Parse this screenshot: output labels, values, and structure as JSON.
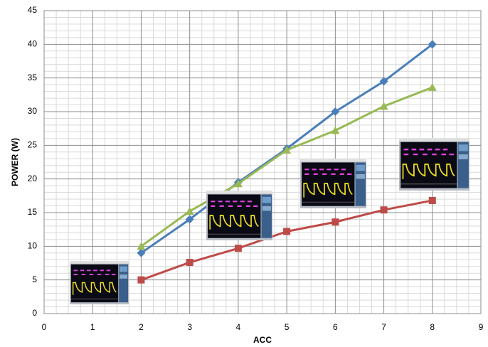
{
  "chart_data": {
    "type": "line",
    "x_label": "ACC",
    "y_label": "POWER (W)",
    "x": [
      2,
      3,
      4,
      5,
      6,
      7,
      8
    ],
    "series": [
      {
        "color": "#4a7ebb",
        "marker": "diamond",
        "values": [
          9,
          14,
          19.5,
          24.5,
          30,
          34.5,
          40
        ]
      },
      {
        "color": "#be4b48",
        "marker": "square",
        "values": [
          5,
          7.6,
          9.7,
          12.2,
          13.6,
          15.4,
          16.8
        ]
      },
      {
        "color": "#98b954",
        "marker": "triangle",
        "values": [
          10,
          15.2,
          19.3,
          24.3,
          27.2,
          30.8,
          33.6
        ]
      }
    ],
    "xlim": [
      0,
      9
    ],
    "xticks": [
      0,
      1,
      2,
      3,
      4,
      5,
      6,
      7,
      8,
      9
    ],
    "ylim": [
      0,
      45
    ],
    "yticks": [
      0,
      5,
      10,
      15,
      20,
      25,
      30,
      35,
      40,
      45
    ],
    "grid": true
  }
}
